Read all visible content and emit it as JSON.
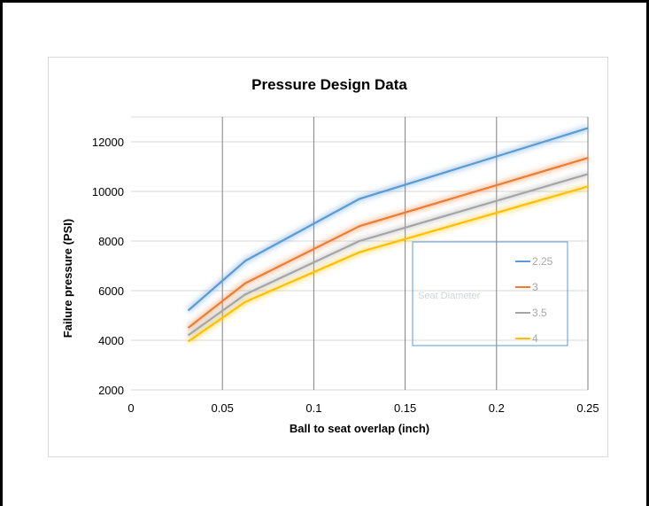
{
  "chart_data": {
    "type": "line",
    "title": "Pressure Design Data",
    "xlabel": "Ball to seat overlap (inch)",
    "ylabel": "Failure pressure (PSI)",
    "xlim": [
      0,
      0.25
    ],
    "ylim": [
      2000,
      13000
    ],
    "x_ticks": [
      "0",
      "0.05",
      "0.1",
      "0.15",
      "0.2",
      "0.25"
    ],
    "y_ticks": [
      "2000",
      "4000",
      "6000",
      "8000",
      "10000",
      "12000"
    ],
    "grid": true,
    "legend_title": "Seat Diameter",
    "legend_position": "center-right",
    "x": [
      0.03125,
      0.0625,
      0.125,
      0.25
    ],
    "series": [
      {
        "name": "2.25",
        "color": "#5b9bd5",
        "values": [
          5200,
          7200,
          9700,
          12550
        ]
      },
      {
        "name": "3",
        "color": "#ed7d31",
        "values": [
          4500,
          6300,
          8600,
          11350
        ]
      },
      {
        "name": "3.5",
        "color": "#a5a5a5",
        "values": [
          4200,
          5850,
          8000,
          10700
        ]
      },
      {
        "name": "4",
        "color": "#ffc000",
        "values": [
          3950,
          5550,
          7550,
          10200
        ]
      }
    ]
  }
}
